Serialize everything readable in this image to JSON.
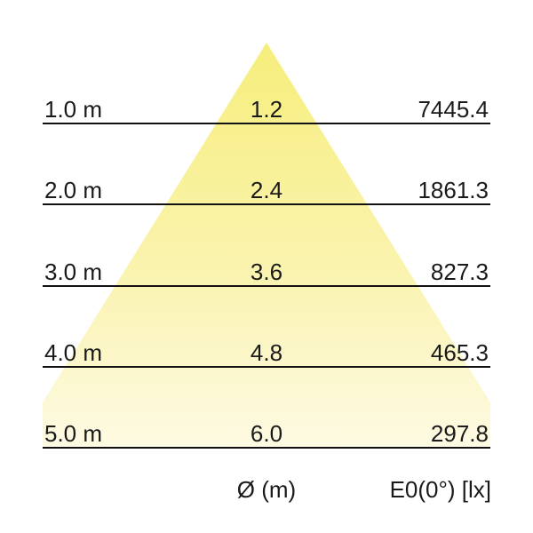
{
  "diagram": {
    "rows": [
      {
        "distance": "1.0 m",
        "diameter": "1.2",
        "illuminance": "7445.4"
      },
      {
        "distance": "2.0 m",
        "diameter": "2.4",
        "illuminance": "1861.3"
      },
      {
        "distance": "3.0 m",
        "diameter": "3.6",
        "illuminance": "827.3"
      },
      {
        "distance": "4.0 m",
        "diameter": "4.8",
        "illuminance": "465.3"
      },
      {
        "distance": "5.0 m",
        "diameter": "6.0",
        "illuminance": "297.8"
      }
    ],
    "axis_labels": {
      "diameter": "Ø (m)",
      "illuminance": "E0(0°) [lx]"
    },
    "colors": {
      "cone_top": "#f6ee7b",
      "cone_bottom": "#fdfae3",
      "line": "#111111",
      "text": "#1a1a1a",
      "background": "#ffffff"
    }
  },
  "chart_data": {
    "type": "table",
    "description": "Luminaire light cone diagram: beam diameter and direct illuminance at increasing mounting distances",
    "columns": [
      "distance",
      "Ø (m)",
      "E0(0°) [lx]"
    ],
    "distances_m": [
      1.0,
      2.0,
      3.0,
      4.0,
      5.0
    ],
    "beam_diameter_m": [
      1.2,
      2.4,
      3.6,
      4.8,
      6.0
    ],
    "illuminance_lx": [
      7445.4,
      1861.3,
      827.3,
      465.3,
      297.8
    ],
    "xlabel": "Ø (m)",
    "value_label": "E0(0°) [lx]",
    "legend_position": "none",
    "grid": false
  }
}
